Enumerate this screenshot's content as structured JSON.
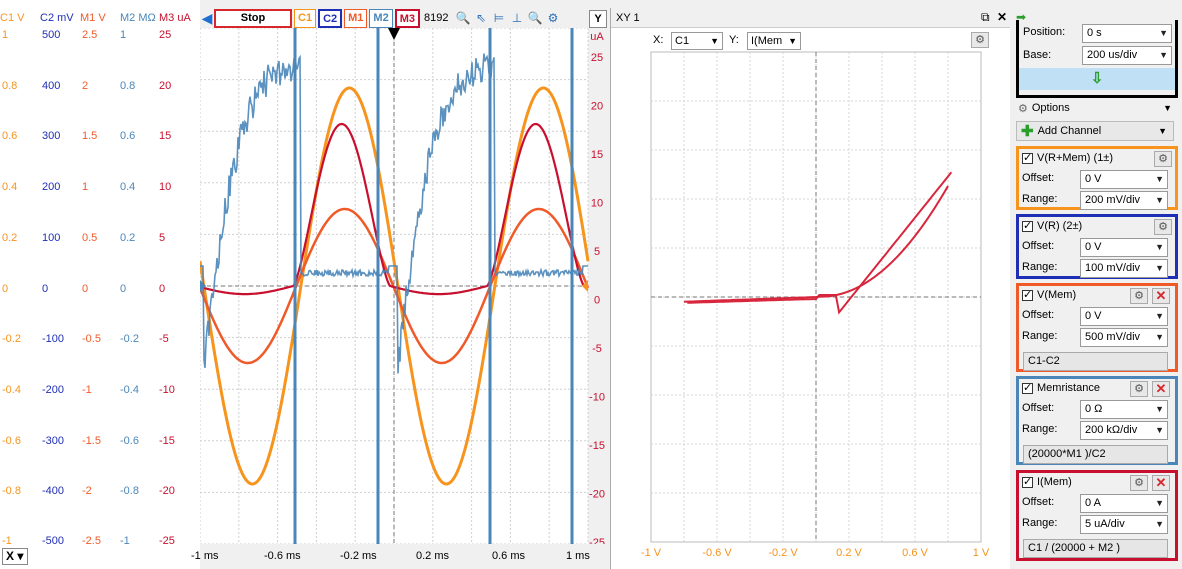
{
  "left_axes": {
    "headers": [
      {
        "label": "C1 V",
        "color": "#f7941d"
      },
      {
        "label": "C2 mV",
        "color": "#1f2fb5"
      },
      {
        "label": "M1 V",
        "color": "#f05a28"
      },
      {
        "label": "M2 MΩ",
        "color": "#4a86b8"
      },
      {
        "label": "M3 uA",
        "color": "#c8102e"
      }
    ],
    "columns": [
      [
        "1",
        "0.8",
        "0.6",
        "0.4",
        "0.2",
        "0",
        "-0.2",
        "-0.4",
        "-0.6",
        "-0.8",
        "-1"
      ],
      [
        "500",
        "400",
        "300",
        "200",
        "100",
        "0",
        "-100",
        "-200",
        "-300",
        "-400",
        "-500"
      ],
      [
        "2.5",
        "2",
        "1.5",
        "1",
        "0.5",
        "0",
        "-0.5",
        "-1",
        "-1.5",
        "-2",
        "-2.5"
      ],
      [
        "1",
        "0.8",
        "0.6",
        "0.4",
        "0.2",
        "0",
        "-0.2",
        "-0.4",
        "-0.6",
        "-0.8",
        "-1"
      ],
      [
        "25",
        "20",
        "15",
        "10",
        "5",
        "0",
        "-5",
        "-10",
        "-15",
        "-20",
        "-25"
      ]
    ]
  },
  "toolbar": {
    "stop_label": "Stop",
    "channels": [
      "C1",
      "C2",
      "M1",
      "M2",
      "M3"
    ],
    "samples": "8192 s",
    "y_label": "Y"
  },
  "scope": {
    "x_ticks": [
      "-1 ms",
      "-0.6 ms",
      "-0.2 ms",
      "0.2 ms",
      "0.6 ms",
      "1 ms"
    ],
    "x_dropdown": "X",
    "right_unit": "uA",
    "right_ticks": [
      "25",
      "20",
      "15",
      "10",
      "5",
      "0",
      "-5",
      "-10",
      "-15",
      "-20",
      "-25"
    ]
  },
  "xy": {
    "title": "XY 1",
    "x_label": "X:",
    "x_value": "C1",
    "y_label": "Y:",
    "y_value": "I(Mem",
    "x_ticks": [
      "-1 V",
      "-0.6 V",
      "-0.2 V",
      "0.2 V",
      "0.6 V",
      "1 V"
    ]
  },
  "panel": {
    "position_label": "Position:",
    "position_value": "0 s",
    "base_label": "Base:",
    "base_value": "200 us/div",
    "options_label": "Options",
    "add_channel_label": "Add Channel",
    "channels": [
      {
        "name": "V(R+Mem) (1±)",
        "color": "#f7941d",
        "offset": "0 V",
        "range": "200 mV/div",
        "expr": ""
      },
      {
        "name": "V(R) (2±)",
        "color": "#1f2fb5",
        "offset": "0 V",
        "range": "100 mV/div",
        "expr": ""
      },
      {
        "name": "V(Mem)",
        "color": "#f05a28",
        "offset": "0 V",
        "range": "500 mV/div",
        "expr": "C1-C2"
      },
      {
        "name": "Memristance",
        "color": "#4a86b8",
        "offset": "0 Ω",
        "range": "200 kΩ/div",
        "expr": "(20000*M1 )/C2"
      },
      {
        "name": "I(Mem)",
        "color": "#c8102e",
        "offset": "0 A",
        "range": "5 uA/div",
        "expr": "C1 / (20000 + M2 )"
      }
    ],
    "offset_label": "Offset:",
    "range_label": "Range:"
  }
}
